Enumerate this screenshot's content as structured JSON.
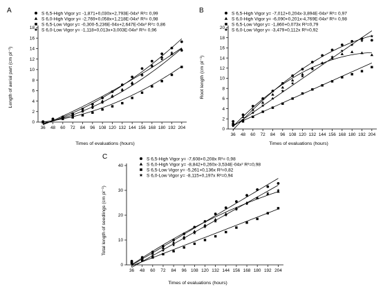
{
  "chart_data": [
    {
      "type": "scatter",
      "panel_label": "A",
      "xlabel": "Times of evaluations (hours)",
      "ylabel": "Length of aerial part (cm pl⁻¹)",
      "ylim": [
        0,
        18
      ],
      "yticks": [
        0,
        2,
        4,
        6,
        8,
        10,
        12,
        14,
        16,
        18
      ],
      "x": [
        36,
        48,
        60,
        72,
        84,
        96,
        108,
        120,
        132,
        144,
        156,
        168,
        180,
        192,
        204
      ],
      "legend_position": "top-left",
      "series": [
        {
          "name": "S 6,5-High Vigor",
          "equation": "y= -1,871+0,030x+2,793E-04x²",
          "r2": "R²= 0,99",
          "marker": "circle",
          "values": [
            0.1,
            0.6,
            1.0,
            1.6,
            2.5,
            3.4,
            4.6,
            5.8,
            7.1,
            8.6,
            10.2,
            11.6,
            13.0,
            14.1,
            15.3
          ],
          "fit": {
            "kind": "quad",
            "a": -1.871,
            "b": 0.03,
            "c": 0.0002793
          }
        },
        {
          "name": "S 6,0-High Vigor",
          "equation": "y= -2,769+0,058x+1,218E-04x²",
          "r2": "R²= 0,98",
          "marker": "triangle",
          "values": [
            0.0,
            0.5,
            0.9,
            1.4,
            2.2,
            3.0,
            4.0,
            5.0,
            6.2,
            7.5,
            9.1,
            10.8,
            12.4,
            13.0,
            13.8
          ],
          "fit": {
            "kind": "quad",
            "a": -2.769,
            "b": 0.058,
            "c": 0.0001218
          }
        },
        {
          "name": "S 6,5-Low Vigor",
          "equation": "y= -0,300-5,236E-04x+2,647E-04x²",
          "r2": "R²= 0,86",
          "marker": "square",
          "values": [
            0.0,
            0.4,
            0.6,
            0.9,
            1.3,
            1.8,
            2.4,
            3.0,
            3.6,
            4.6,
            5.6,
            6.8,
            7.8,
            9.0,
            10.5
          ],
          "fit": {
            "kind": "quad",
            "a": -0.3,
            "b": -0.0005236,
            "c": 0.0002647
          }
        },
        {
          "name": "S 6,0-Low Vigor",
          "equation": "y= -1,118+0,013x+3,003E-04x²",
          "r2": "R²= 0,96",
          "marker": "star",
          "values": [
            0.0,
            0.5,
            0.8,
            1.3,
            2.0,
            2.7,
            3.7,
            4.8,
            6.0,
            7.2,
            8.9,
            10.6,
            12.0,
            13.2,
            13.6
          ],
          "fit": {
            "kind": "quad",
            "a": -1.118,
            "b": 0.013,
            "c": 0.0003003
          }
        }
      ]
    },
    {
      "type": "scatter",
      "panel_label": "B",
      "xlabel": "Times of evaluations (hours)",
      "ylabel": "Root length (cm pl⁻¹)",
      "ylim": [
        0,
        20
      ],
      "yticks": [
        0,
        2,
        4,
        6,
        8,
        10,
        12,
        14,
        16,
        18,
        20
      ],
      "x": [
        36,
        48,
        60,
        72,
        84,
        96,
        108,
        120,
        132,
        144,
        156,
        168,
        180,
        192,
        204
      ],
      "legend_position": "top-left",
      "series": [
        {
          "name": "S 6,5-High Vigor",
          "equation": "y= -7,012+0,204x-3,894E-04x²",
          "r2": "R²= 0,97",
          "marker": "circle",
          "values": [
            1.5,
            2.8,
            4.5,
            6.0,
            7.5,
            9.0,
            10.5,
            11.8,
            13.2,
            14.5,
            15.6,
            16.6,
            17.3,
            17.8,
            17.5
          ],
          "fit": {
            "kind": "quad",
            "a": -7.012,
            "b": 0.204,
            "c": -0.0003894
          }
        },
        {
          "name": "S 6,0-High Vigor",
          "equation": "y= -6,090+0,201x-4,769E-04x²",
          "r2": "R²= 0,98",
          "marker": "triangle",
          "values": [
            1.2,
            2.4,
            3.8,
            5.2,
            6.8,
            8.2,
            9.6,
            10.8,
            12.0,
            13.0,
            14.0,
            14.8,
            15.2,
            15.0,
            14.6
          ],
          "fit": {
            "kind": "quad",
            "a": -6.09,
            "b": 0.201,
            "c": -0.0004769
          }
        },
        {
          "name": "S 6,5-Low Vigor",
          "equation": "y= -1,860+0,073x",
          "r2": "R²=0,79",
          "marker": "square",
          "values": [
            0.8,
            1.5,
            2.4,
            3.4,
            4.2,
            5.0,
            6.0,
            7.0,
            7.8,
            8.6,
            9.4,
            10.2,
            10.8,
            11.4,
            12.2
          ],
          "fit": {
            "kind": "linear",
            "a": -1.86,
            "b": 0.073
          }
        },
        {
          "name": "S 6,0-Low Vigor",
          "equation": "y= -3,479+0,112x",
          "r2": "R²=0,92",
          "marker": "star",
          "values": [
            0.6,
            1.8,
            3.2,
            4.6,
            6.0,
            7.5,
            9.0,
            10.4,
            11.8,
            13.0,
            14.2,
            15.4,
            16.6,
            17.4,
            18.3
          ],
          "fit": {
            "kind": "linear",
            "a": -3.479,
            "b": 0.112
          }
        }
      ]
    },
    {
      "type": "scatter",
      "panel_label": "C",
      "xlabel": "Times of evaluations (hours)",
      "ylabel": "Total length of seedlings (cm pl⁻¹)",
      "ylim": [
        0,
        40
      ],
      "yticks": [
        0,
        10,
        20,
        30,
        40
      ],
      "x": [
        36,
        48,
        60,
        72,
        84,
        96,
        108,
        120,
        132,
        144,
        156,
        168,
        180,
        192,
        204
      ],
      "legend_position": "top-left",
      "series": [
        {
          "name": "S 6,5-High Vigor",
          "equation": "y= -7,608+0,208x",
          "r2": "R²= 0,98",
          "marker": "circle",
          "values": [
            1.5,
            3.0,
            5.2,
            7.5,
            10.0,
            12.5,
            15.2,
            17.5,
            20.5,
            23.0,
            25.5,
            28.0,
            30.3,
            31.5,
            32.8
          ],
          "fit": {
            "kind": "linear",
            "a": -7.608,
            "b": 0.208
          }
        },
        {
          "name": "S 6,0-High Vigor",
          "equation": "y= -8,842+0,260x-3,534E-04x²",
          "r2": "R²=0,98",
          "marker": "triangle",
          "values": [
            1.2,
            2.8,
            4.7,
            6.8,
            9.0,
            11.2,
            13.5,
            16.0,
            18.3,
            20.5,
            22.8,
            25.0,
            27.0,
            28.5,
            29.5
          ],
          "fit": {
            "kind": "quad",
            "a": -8.842,
            "b": 0.26,
            "c": -0.0003534
          }
        },
        {
          "name": "S 6,5-Low Vigor",
          "equation": "y= -5,261+0,136x",
          "r2": "R²=0,82",
          "marker": "square",
          "values": [
            0.8,
            1.8,
            3.0,
            4.3,
            5.5,
            7.0,
            8.5,
            10.0,
            11.5,
            13.2,
            15.0,
            17.0,
            18.5,
            20.8,
            22.8
          ],
          "fit": {
            "kind": "linear",
            "a": -5.261,
            "b": 0.136
          }
        },
        {
          "name": "S 6,0-Low Vigor",
          "equation": "y= -8,115+0,197x",
          "r2": "R²=0,94",
          "marker": "star",
          "values": [
            0.5,
            2.0,
            3.8,
            5.8,
            8.0,
            10.5,
            12.8,
            15.3,
            17.5,
            20.0,
            22.3,
            24.6,
            26.8,
            28.8,
            30.0
          ],
          "fit": {
            "kind": "linear",
            "a": -8.115,
            "b": 0.197
          }
        }
      ]
    }
  ]
}
